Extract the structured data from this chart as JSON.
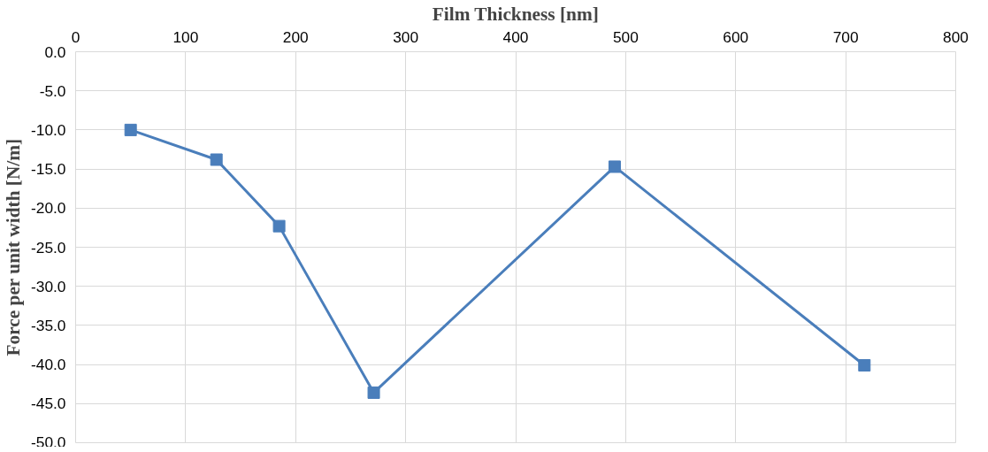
{
  "chart_data": {
    "type": "line",
    "xlabel": "Film Thickness [nm]",
    "ylabel": "Force per unit width [N/m]",
    "x": [
      50,
      128,
      185,
      271,
      490,
      717
    ],
    "series": [
      {
        "color": "#4a7ebb",
        "values": [
          -10.0,
          -13.8,
          -22.3,
          -43.6,
          -14.7,
          -40.1
        ]
      }
    ],
    "xlim": [
      0,
      800
    ],
    "xticks": [
      0,
      100,
      200,
      300,
      400,
      500,
      600,
      700,
      800
    ],
    "ylim": [
      -50,
      0
    ],
    "yticks": [
      {
        "value": 0,
        "label": "0.0"
      },
      {
        "value": -5,
        "label": "-5.0"
      },
      {
        "value": -10,
        "label": "-10.0"
      },
      {
        "value": -15,
        "label": "-15.0"
      },
      {
        "value": -20,
        "label": "-20.0"
      },
      {
        "value": -25,
        "label": "-25.0"
      },
      {
        "value": -30,
        "label": "-30.0"
      },
      {
        "value": -35,
        "label": "-35.0"
      },
      {
        "value": -40,
        "label": "-40.0"
      },
      {
        "value": -45,
        "label": "-45.0"
      },
      {
        "value": -50,
        "label": "-50.0"
      }
    ],
    "grid": true,
    "marker": "square",
    "line_style": "solid"
  }
}
